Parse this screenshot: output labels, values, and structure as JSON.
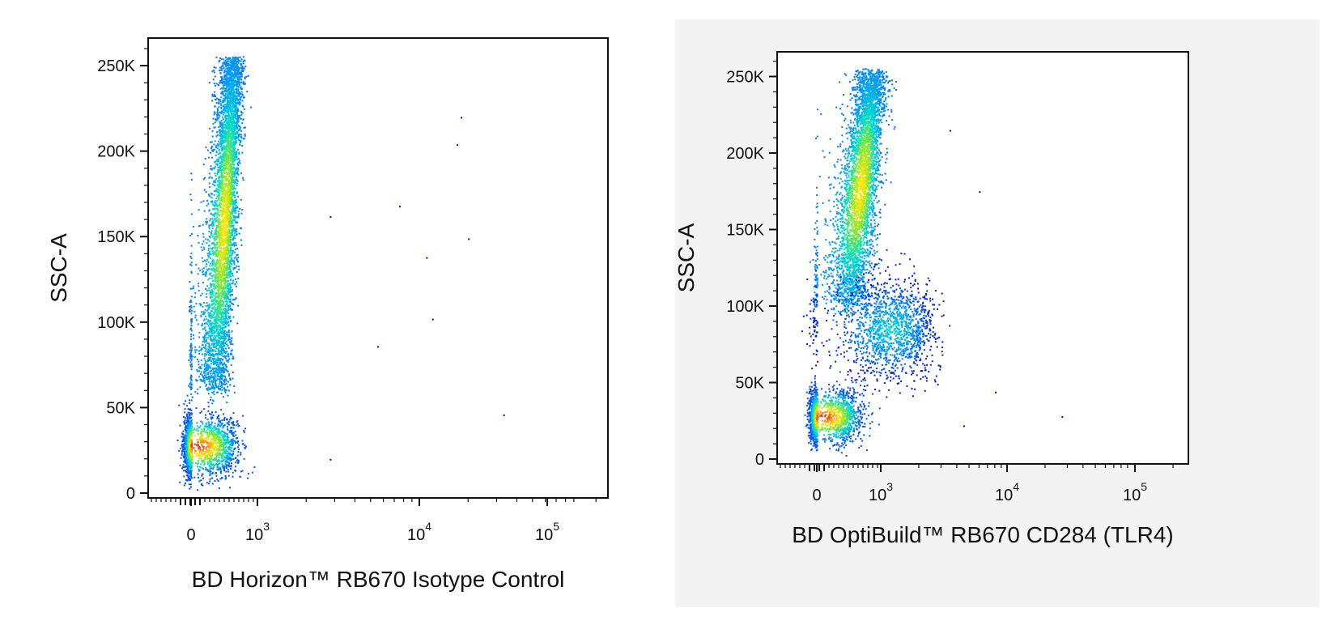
{
  "chart_data": [
    {
      "type": "scatter",
      "subtype": "flow-cytometry-density-dot-plot",
      "xlabel": "BD Horizon™ RB670 Isotype Control",
      "ylabel": "SSC-A",
      "xscale": "biexponential",
      "x_ticks": [
        {
          "base": "0",
          "exp": ""
        },
        {
          "base": "10",
          "exp": "3"
        },
        {
          "base": "10",
          "exp": "4"
        },
        {
          "base": "10",
          "exp": "5"
        }
      ],
      "y_ticks": [
        "0",
        "50K",
        "100K",
        "150K",
        "200K",
        "250K"
      ],
      "ylim": [
        0,
        262144
      ],
      "populations": [
        {
          "name_note": "small low-SSC cluster",
          "x_center": 0,
          "y_center": 28000,
          "events": 1800
        },
        {
          "name_note": "main tilted population",
          "x_range": [
            0,
            500
          ],
          "y_range": [
            60000,
            255000
          ],
          "events": 4800
        }
      ],
      "outliers": [
        [
          2800,
          162000
        ],
        [
          7500,
          168000
        ],
        [
          11000,
          138000
        ],
        [
          12000,
          102000
        ],
        [
          18000,
          220000
        ],
        [
          17000,
          204000
        ],
        [
          20000,
          149000
        ],
        [
          5500,
          86000
        ],
        [
          33000,
          46000
        ],
        [
          2800,
          20000
        ]
      ]
    },
    {
      "type": "scatter",
      "subtype": "flow-cytometry-density-dot-plot",
      "xlabel": "BD OptiBuild™ RB670 CD284 (TLR4)",
      "ylabel": "SSC-A",
      "xscale": "biexponential",
      "x_ticks": [
        {
          "base": "0",
          "exp": ""
        },
        {
          "base": "10",
          "exp": "3"
        },
        {
          "base": "10",
          "exp": "4"
        },
        {
          "base": "10",
          "exp": "5"
        }
      ],
      "y_ticks": [
        "0",
        "50K",
        "100K",
        "150K",
        "200K",
        "250K"
      ],
      "ylim": [
        0,
        262144
      ],
      "populations": [
        {
          "name_note": "small low-SSC cluster",
          "x_center": 0,
          "y_center": 28000,
          "events": 1600
        },
        {
          "name_note": "main tilted population",
          "x_range": [
            0,
            900
          ],
          "y_range": [
            100000,
            255000
          ],
          "events": 4200
        },
        {
          "name_note": "positive population",
          "x_center": 1200,
          "y_center": 85000,
          "events": 1500
        }
      ],
      "outliers": [
        [
          3500,
          215000
        ],
        [
          6000,
          175000
        ],
        [
          27000,
          28000
        ],
        [
          4500,
          22000
        ],
        [
          8000,
          44000
        ]
      ]
    }
  ]
}
